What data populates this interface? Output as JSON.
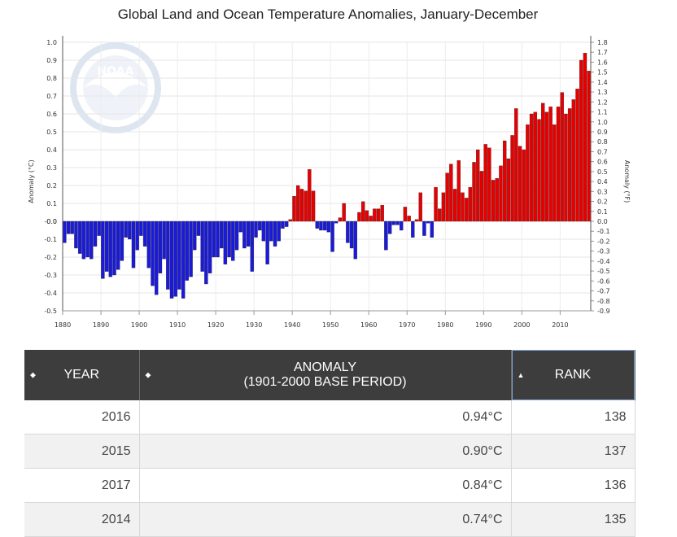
{
  "chart_data": {
    "type": "bar",
    "title": "Global Land and Ocean Temperature Anomalies, January-December",
    "ylabel": "Anomaly (°C)",
    "y2label": "Anomaly (°F)",
    "ylim": [
      -0.5,
      1.0
    ],
    "y2lim": [
      -0.9,
      1.8
    ],
    "grid": true,
    "x_ticks": [
      "1880",
      "1890",
      "1900",
      "1910",
      "1920",
      "1930",
      "1940",
      "1950",
      "1960",
      "1970",
      "1980",
      "1990",
      "2000",
      "2010"
    ],
    "y_ticks": [
      "1.0",
      "0.9",
      "0.8",
      "0.7",
      "0.6",
      "0.5",
      "0.4",
      "0.3",
      "0.2",
      "0.1",
      "0.0",
      "-0.0",
      "-0.1",
      "-0.2",
      "-0.3",
      "-0.4",
      "-0.5"
    ],
    "y2_ticks": [
      "1.8",
      "1.7",
      "1.6",
      "1.5",
      "1.4",
      "1.3",
      "1.2",
      "1.1",
      "1.0",
      "0.9",
      "0.8",
      "0.7",
      "0.6",
      "0.5",
      "0.4",
      "0.3",
      "0.2",
      "0.1",
      "0.0",
      "-0.1",
      "-0.2",
      "-0.3",
      "-0.4",
      "-0.5",
      "-0.6",
      "-0.7",
      "-0.8",
      "-0.9"
    ],
    "positive_color": "#e60000",
    "negative_color": "#1a1ad8",
    "x": [
      1880,
      1881,
      1882,
      1883,
      1884,
      1885,
      1886,
      1887,
      1888,
      1889,
      1890,
      1891,
      1892,
      1893,
      1894,
      1895,
      1896,
      1897,
      1898,
      1899,
      1900,
      1901,
      1902,
      1903,
      1904,
      1905,
      1906,
      1907,
      1908,
      1909,
      1910,
      1911,
      1912,
      1913,
      1914,
      1915,
      1916,
      1917,
      1918,
      1919,
      1920,
      1921,
      1922,
      1923,
      1924,
      1925,
      1926,
      1927,
      1928,
      1929,
      1930,
      1931,
      1932,
      1933,
      1934,
      1935,
      1936,
      1937,
      1938,
      1939,
      1940,
      1941,
      1942,
      1943,
      1944,
      1945,
      1946,
      1947,
      1948,
      1949,
      1950,
      1951,
      1952,
      1953,
      1954,
      1955,
      1956,
      1957,
      1958,
      1959,
      1960,
      1961,
      1962,
      1963,
      1964,
      1965,
      1966,
      1967,
      1968,
      1969,
      1970,
      1971,
      1972,
      1973,
      1974,
      1975,
      1976,
      1977,
      1978,
      1979,
      1980,
      1981,
      1982,
      1983,
      1984,
      1985,
      1986,
      1987,
      1988,
      1989,
      1990,
      1991,
      1992,
      1993,
      1994,
      1995,
      1996,
      1997,
      1998,
      1999,
      2000,
      2001,
      2002,
      2003,
      2004,
      2005,
      2006,
      2007,
      2008,
      2009,
      2010,
      2011,
      2012,
      2013,
      2014,
      2015,
      2016,
      2017
    ],
    "values": [
      -0.12,
      -0.07,
      -0.07,
      -0.15,
      -0.18,
      -0.21,
      -0.2,
      -0.21,
      -0.14,
      -0.08,
      -0.32,
      -0.28,
      -0.31,
      -0.3,
      -0.27,
      -0.22,
      -0.09,
      -0.1,
      -0.26,
      -0.16,
      -0.08,
      -0.14,
      -0.26,
      -0.36,
      -0.41,
      -0.29,
      -0.21,
      -0.38,
      -0.43,
      -0.42,
      -0.38,
      -0.43,
      -0.33,
      -0.31,
      -0.16,
      -0.08,
      -0.28,
      -0.35,
      -0.29,
      -0.2,
      -0.2,
      -0.15,
      -0.24,
      -0.2,
      -0.22,
      -0.16,
      -0.06,
      -0.15,
      -0.14,
      -0.28,
      -0.09,
      -0.05,
      -0.11,
      -0.24,
      -0.11,
      -0.14,
      -0.11,
      -0.04,
      -0.03,
      0.01,
      0.14,
      0.2,
      0.18,
      0.17,
      0.29,
      0.17,
      -0.04,
      -0.05,
      -0.05,
      -0.06,
      -0.17,
      -0.01,
      0.02,
      0.1,
      -0.12,
      -0.15,
      -0.21,
      0.05,
      0.11,
      0.06,
      0.03,
      0.07,
      0.07,
      0.09,
      -0.16,
      -0.07,
      -0.02,
      -0.02,
      -0.05,
      0.08,
      0.03,
      -0.09,
      0.01,
      0.16,
      -0.08,
      -0.01,
      -0.09,
      0.19,
      0.07,
      0.16,
      0.27,
      0.32,
      0.18,
      0.34,
      0.16,
      0.13,
      0.19,
      0.33,
      0.4,
      0.28,
      0.43,
      0.41,
      0.23,
      0.24,
      0.31,
      0.45,
      0.35,
      0.48,
      0.63,
      0.42,
      0.4,
      0.54,
      0.6,
      0.61,
      0.57,
      0.66,
      0.61,
      0.64,
      0.54,
      0.64,
      0.72,
      0.6,
      0.63,
      0.68,
      0.74,
      0.9,
      0.94,
      0.84
    ]
  },
  "table": {
    "headers": [
      {
        "label_line1": "YEAR",
        "label_line2": ""
      },
      {
        "label_line1": "ANOMALY",
        "label_line2": "(1901-2000 BASE PERIOD)"
      },
      {
        "label_line1": "RANK",
        "label_line2": ""
      }
    ],
    "sort_icons": [
      "both-arrows-icon",
      "both-arrows-icon",
      "up-arrow-icon"
    ],
    "rows": [
      {
        "year": "2016",
        "anomaly": "0.94°C",
        "rank": "138"
      },
      {
        "year": "2015",
        "anomaly": "0.90°C",
        "rank": "137"
      },
      {
        "year": "2017",
        "anomaly": "0.84°C",
        "rank": "136"
      },
      {
        "year": "2014",
        "anomaly": "0.74°C",
        "rank": "135"
      }
    ]
  },
  "header_color": "#3d3d3d",
  "logo_text": "NOAA"
}
